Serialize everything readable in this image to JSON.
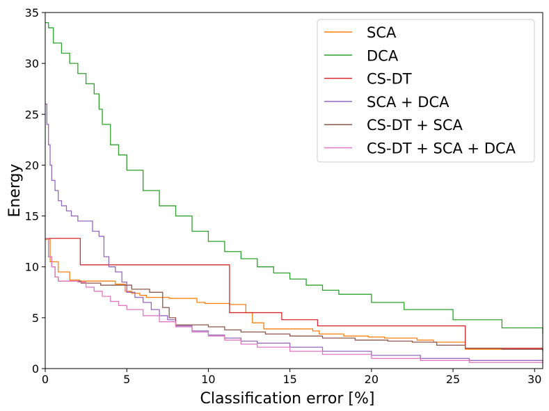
{
  "chart_data": {
    "type": "line",
    "title": "",
    "xlabel": "Classification error [%]",
    "ylabel": "Energy",
    "xlim": [
      0,
      30.5
    ],
    "ylim": [
      0,
      35
    ],
    "xticks": [
      0,
      5,
      10,
      15,
      20,
      25,
      30
    ],
    "yticks": [
      0,
      5,
      10,
      15,
      20,
      25,
      30,
      35
    ],
    "xtick_labels": [
      "0",
      "5",
      "10",
      "15",
      "20",
      "25",
      "30"
    ],
    "ytick_labels": [
      "0",
      "5",
      "10",
      "15",
      "20",
      "25",
      "30",
      "35"
    ],
    "grid": false,
    "legend_position": "top-right",
    "series": [
      {
        "name": "SCA",
        "color": "#ff7f0e",
        "step": true,
        "x": [
          0,
          0.3,
          0.8,
          1.5,
          2.1,
          3.5,
          4.3,
          4.9,
          5.3,
          5.8,
          6.2,
          7.6,
          9.3,
          9.8,
          11.3,
          12.3,
          12.7,
          13.4,
          16.4,
          16.8,
          18.3,
          19.8,
          20.8,
          22.8,
          23.8,
          25.7,
          25.75,
          30.5
        ],
        "y": [
          12.7,
          10.5,
          9.5,
          8.7,
          8.6,
          8.6,
          8.3,
          7.6,
          7.4,
          7.2,
          7.0,
          6.9,
          6.5,
          6.4,
          6.3,
          5.5,
          4.5,
          3.9,
          3.7,
          3.4,
          3.2,
          3.1,
          3.0,
          2.8,
          2.6,
          2.6,
          1.9,
          1.9
        ]
      },
      {
        "name": "DCA",
        "color": "#2ca02c",
        "step": true,
        "x": [
          0,
          0.2,
          0.5,
          1,
          1.5,
          2,
          2.5,
          3,
          3.3,
          3.5,
          4,
          4.5,
          5,
          6,
          7,
          8,
          9,
          10,
          11,
          12,
          13,
          14,
          15,
          16,
          17,
          18,
          20,
          22,
          25,
          28,
          30.5
        ],
        "y": [
          34,
          33.5,
          32,
          31,
          30,
          29,
          28,
          27,
          25.5,
          24,
          22,
          21,
          19.5,
          17.5,
          16,
          15,
          13.5,
          12.5,
          11.5,
          10.8,
          10,
          9.4,
          8.8,
          8.2,
          7.7,
          7.3,
          6.5,
          5.8,
          4.8,
          4.0,
          3.4
        ]
      },
      {
        "name": "CS-DT",
        "color": "#d62728",
        "step": true,
        "x": [
          0,
          2.15,
          11.3,
          14.5,
          16.7,
          25.75,
          30.5
        ],
        "y": [
          12.8,
          10.2,
          5.5,
          4.8,
          4.2,
          2.0,
          2.0
        ]
      },
      {
        "name": "SCA + DCA",
        "color": "#9467bd",
        "step": true,
        "x": [
          0,
          0.1,
          0.2,
          0.3,
          0.4,
          0.6,
          0.8,
          1,
          1.3,
          1.6,
          2,
          2.6,
          2.9,
          3.3,
          3.6,
          3.9,
          4.3,
          4.7,
          5,
          5.5,
          6,
          6.5,
          7,
          7.5,
          8,
          9,
          10,
          11,
          12,
          13,
          15,
          17,
          20,
          23,
          26,
          30.5
        ],
        "y": [
          26,
          24,
          22,
          20,
          18.5,
          17.5,
          16.5,
          16,
          15.5,
          15,
          14.5,
          14.5,
          13.5,
          13,
          11,
          10,
          9.5,
          8.5,
          7.5,
          7,
          6.5,
          5.8,
          5.2,
          4.8,
          4.2,
          3.7,
          3.3,
          3.0,
          2.7,
          2.5,
          2.1,
          1.7,
          1.3,
          1.0,
          0.8,
          0.6
        ]
      },
      {
        "name": "CS-DT + SCA",
        "color": "#8c564b",
        "step": true,
        "x": [
          0,
          0.2,
          0.4,
          0.6,
          0.8,
          2.2,
          3.4,
          5.3,
          6.4,
          7.2,
          7.6,
          8,
          10,
          11,
          12,
          13.5,
          15,
          17,
          19,
          21,
          22.5,
          24,
          25.75,
          28,
          30.5
        ],
        "y": [
          12.8,
          11,
          10,
          9,
          8.6,
          8.4,
          8.2,
          7.8,
          7.5,
          6.0,
          5.0,
          4.3,
          4.1,
          3.8,
          3.6,
          3.4,
          3.2,
          3.0,
          2.8,
          2.7,
          2.6,
          2.3,
          2.0,
          1.9,
          1.7
        ]
      },
      {
        "name": "CS-DT + SCA + DCA",
        "color": "#e377c2",
        "step": true,
        "x": [
          0,
          0.2,
          0.4,
          0.6,
          0.8,
          1.5,
          2,
          2.5,
          3,
          3.5,
          4,
          4.5,
          5,
          6,
          7,
          8,
          9,
          10,
          11,
          12,
          13,
          15,
          17,
          20,
          23,
          26,
          30.5
        ],
        "y": [
          12.8,
          11,
          10,
          9,
          8.6,
          8.6,
          8.5,
          8,
          7.6,
          7.1,
          6.6,
          6.2,
          5.8,
          5.2,
          4.6,
          4.1,
          3.6,
          3.2,
          2.8,
          2.4,
          2.1,
          1.7,
          1.4,
          1.0,
          0.8,
          0.6,
          0.4
        ]
      }
    ]
  }
}
